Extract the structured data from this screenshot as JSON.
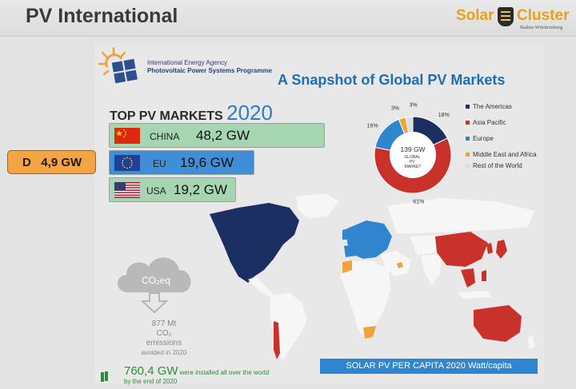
{
  "header": {
    "title": "PV International",
    "brand": {
      "solar": "Solar",
      "cluster": "Cluster",
      "sub": "Baden-Württemberg"
    }
  },
  "iea": {
    "name": "International Energy Agency",
    "program": "Photovoltaic Power Systems Programme"
  },
  "slide_title": "A Snapshot of Global PV Markets",
  "top_markets": {
    "label": "TOP PV MARKETS",
    "year": "2020",
    "items": [
      {
        "country": "CHINA",
        "value": "48,2 GW",
        "flag": "china-flag"
      },
      {
        "country": "EU",
        "value": "19,6 GW",
        "flag": "eu-flag"
      },
      {
        "country": "USA",
        "value": "19,2 GW",
        "flag": "usa-flag"
      }
    ]
  },
  "germany": {
    "country": "D",
    "value": "4,9 GW"
  },
  "chart_data": {
    "type": "pie",
    "subtype": "donut",
    "center_value": "139 GW",
    "center_caption": "GLOBAL PV MARKET",
    "categories": [
      "The Americas",
      "Asia Pacific",
      "Europe",
      "Middle East and Africa",
      "Rest of the World"
    ],
    "values": [
      18,
      61,
      16,
      3,
      3
    ],
    "labels": [
      "18%",
      "61%",
      "16%",
      "3%",
      "3%"
    ],
    "colors": [
      "#1b2f63",
      "#c8322a",
      "#2f86cf",
      "#f2a23a",
      "#dddddd"
    ],
    "legend_position": "right"
  },
  "co2": {
    "icon_label": "CO₂eq",
    "line1": "877 Mt",
    "line2": "CO₂ emissions",
    "line3": "avoided in 2020"
  },
  "installed": {
    "value": "760,4 GW",
    "text": "were installed all over the world",
    "line2": "by the end of 2020"
  },
  "map_caption": "SOLAR PV PER CAPITA 2020 Watt/capita"
}
